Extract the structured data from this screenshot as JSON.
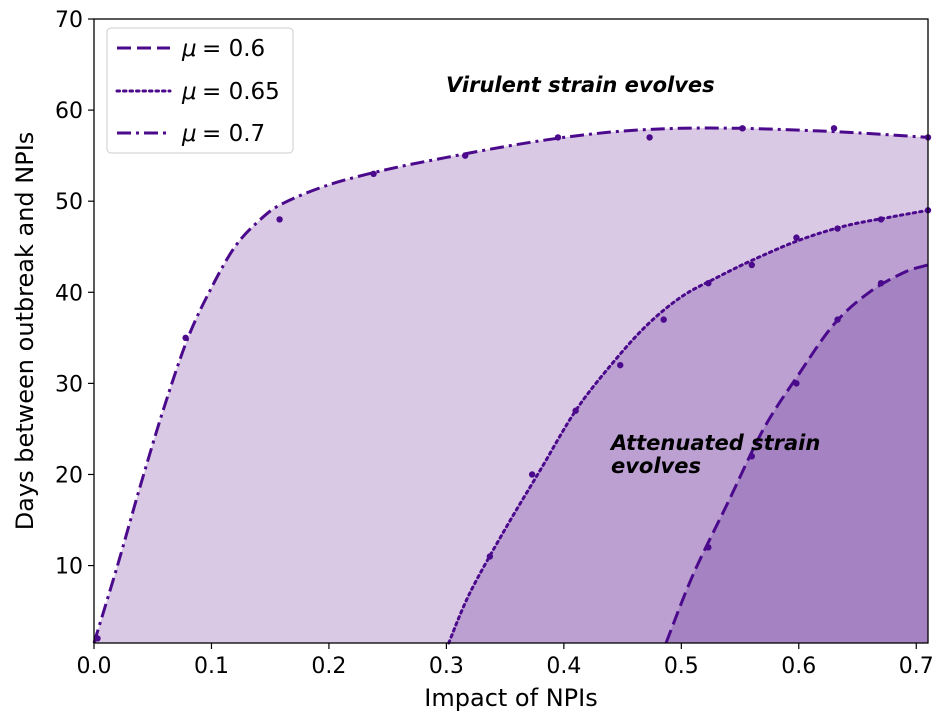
{
  "chart_data": {
    "type": "area",
    "xlabel": "Impact of NPIs",
    "ylabel": "Days between outbreak and NPIs",
    "xlim": [
      0.0,
      0.71
    ],
    "ylim": [
      1.5,
      70
    ],
    "xticks": [
      "0.0",
      "0.1",
      "0.2",
      "0.3",
      "0.4",
      "0.5",
      "0.6",
      "0.7"
    ],
    "yticks": [
      "10",
      "20",
      "30",
      "40",
      "50",
      "60",
      "70"
    ],
    "xtick_values": [
      0.0,
      0.1,
      0.2,
      0.3,
      0.4,
      0.5,
      0.6,
      0.7
    ],
    "ytick_values": [
      10,
      20,
      30,
      40,
      50,
      60,
      70
    ],
    "legend_position": "top-left",
    "grid": false,
    "annotations": [
      {
        "text": "Virulent strain evolves"
      },
      {
        "text_line1": "Attenuated strain",
        "text_line2": "evolves"
      }
    ],
    "series": [
      {
        "name": "μ = 0.6",
        "mu_label": "μ",
        "value_label": "= 0.6",
        "dash": "dashed",
        "fill_color": "#a582c2",
        "line_color": "#4b0a8c",
        "curve": [
          [
            0.487,
            1.5
          ],
          [
            0.51,
            9
          ],
          [
            0.54,
            17
          ],
          [
            0.57,
            25
          ],
          [
            0.6,
            31
          ],
          [
            0.63,
            36.5
          ],
          [
            0.66,
            40
          ],
          [
            0.69,
            42.2
          ],
          [
            0.71,
            43
          ]
        ],
        "points": [
          [
            0.523,
            12
          ],
          [
            0.56,
            22
          ],
          [
            0.598,
            30
          ],
          [
            0.633,
            37
          ],
          [
            0.67,
            41
          ]
        ]
      },
      {
        "name": "μ = 0.65",
        "mu_label": "μ",
        "value_label": "= 0.65",
        "dash": "dotted",
        "fill_color": "#bca0d2",
        "line_color": "#4b0a8c",
        "curve": [
          [
            0.302,
            1.5
          ],
          [
            0.32,
            7
          ],
          [
            0.35,
            14
          ],
          [
            0.38,
            20.5
          ],
          [
            0.41,
            27
          ],
          [
            0.44,
            32
          ],
          [
            0.47,
            36.3
          ],
          [
            0.5,
            39.5
          ],
          [
            0.53,
            41.6
          ],
          [
            0.56,
            43.5
          ],
          [
            0.6,
            45.7
          ],
          [
            0.64,
            47.3
          ],
          [
            0.68,
            48.3
          ],
          [
            0.71,
            49
          ]
        ],
        "points": [
          [
            0.337,
            11
          ],
          [
            0.373,
            20
          ],
          [
            0.41,
            27
          ],
          [
            0.448,
            32
          ],
          [
            0.485,
            37
          ],
          [
            0.523,
            41
          ],
          [
            0.56,
            43
          ],
          [
            0.598,
            46
          ],
          [
            0.633,
            47
          ],
          [
            0.67,
            48
          ],
          [
            0.71,
            49
          ]
        ]
      },
      {
        "name": "μ = 0.7",
        "mu_label": "μ",
        "value_label": "= 0.7",
        "dash": "dashdot",
        "fill_color": "#dac9e5",
        "line_color": "#4b0a8c",
        "curve": [
          [
            0.0,
            1.5
          ],
          [
            0.02,
            10
          ],
          [
            0.04,
            19
          ],
          [
            0.06,
            27.5
          ],
          [
            0.08,
            35
          ],
          [
            0.1,
            40.5
          ],
          [
            0.12,
            45
          ],
          [
            0.14,
            47.8
          ],
          [
            0.16,
            49.7
          ],
          [
            0.2,
            51.8
          ],
          [
            0.25,
            53.5
          ],
          [
            0.3,
            54.8
          ],
          [
            0.35,
            56
          ],
          [
            0.4,
            57
          ],
          [
            0.45,
            57.7
          ],
          [
            0.5,
            58
          ],
          [
            0.55,
            58
          ],
          [
            0.6,
            57.8
          ],
          [
            0.65,
            57.5
          ],
          [
            0.71,
            57
          ]
        ],
        "points": [
          [
            0.003,
            2
          ],
          [
            0.078,
            35
          ],
          [
            0.158,
            48
          ],
          [
            0.238,
            53
          ],
          [
            0.316,
            55
          ],
          [
            0.395,
            57
          ],
          [
            0.473,
            57
          ],
          [
            0.552,
            58
          ],
          [
            0.63,
            58
          ],
          [
            0.71,
            57
          ]
        ]
      }
    ]
  }
}
